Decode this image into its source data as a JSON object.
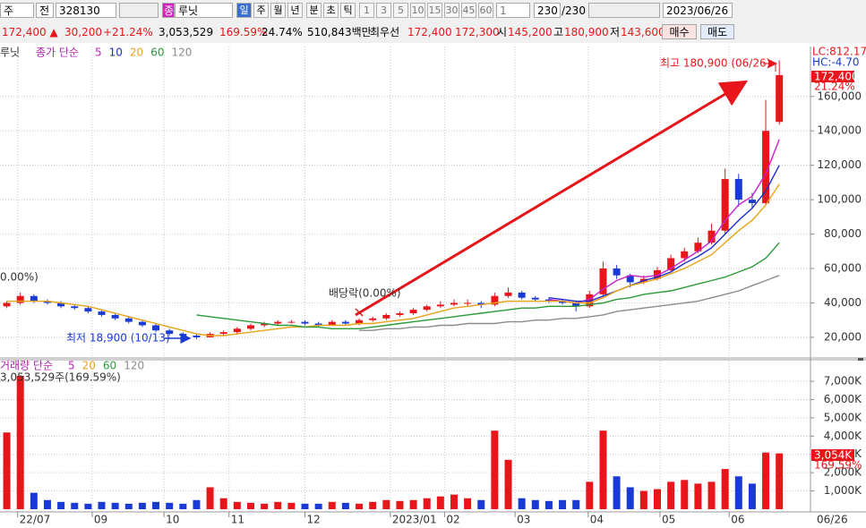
{
  "toolbar": {
    "period": "주",
    "prev": "전",
    "code": "328130",
    "type_badge": "종",
    "name": "루닛",
    "intervals": [
      "일",
      "주",
      "월",
      "년",
      "분",
      "초",
      "틱"
    ],
    "minutes": [
      "1",
      "3",
      "5",
      "10",
      "15",
      "30",
      "45",
      "60"
    ],
    "count_sel": "1",
    "count": "230",
    "count_total": "/230",
    "date": "2023/06/26"
  },
  "quote": {
    "price": "172,400 ▲",
    "change": "30,200",
    "change_pct": "+21.24%",
    "volume": "3,053,529",
    "volume_ratio": "169.59%",
    "turnover": "24.74%",
    "amount": "510,843백만",
    "best_label": "최우선",
    "ask": "172,400",
    "bid": "172,300",
    "open_label": "시",
    "open": "145,200",
    "high_label": "고",
    "high": "180,900",
    "low_label": "저",
    "low": "143,600",
    "buy": "매수",
    "sell": "매도"
  },
  "chart_data": [
    {
      "type": "candlestick",
      "name": "루닛",
      "legend_title": "종가 단순",
      "categories": [
        null,
        null,
        null,
        null,
        null,
        null,
        null,
        null,
        null,
        null,
        null,
        null,
        null,
        null,
        null,
        null,
        null,
        null,
        null,
        null,
        null,
        null,
        null,
        null,
        null,
        null,
        null,
        null,
        null,
        null,
        null,
        null,
        null,
        null,
        null,
        null,
        null,
        null,
        null,
        null,
        null,
        null,
        null,
        null,
        null,
        null,
        null,
        null,
        null,
        null,
        null,
        null,
        null,
        null,
        null,
        null,
        null,
        null
      ],
      "open": [
        38000,
        40000,
        44000,
        41000,
        40000,
        38000,
        37000,
        35000,
        33000,
        31000,
        29000,
        27000,
        24000,
        22000,
        21000,
        20000,
        22000,
        23000,
        25000,
        27000,
        28000,
        29000,
        29000,
        28000,
        27000,
        29000,
        28000,
        30000,
        31000,
        33000,
        34000,
        36000,
        38000,
        39000,
        40000,
        40000,
        39000,
        44000,
        46000,
        43000,
        42000,
        41000,
        40000,
        38000,
        45000,
        60000,
        56000,
        52000,
        54000,
        59000,
        66000,
        70000,
        75000,
        82000,
        112000,
        100000,
        98000,
        145200
      ],
      "high": [
        41000,
        46000,
        45000,
        42000,
        41000,
        39000,
        38000,
        36000,
        34000,
        32000,
        30000,
        28000,
        25000,
        23000,
        22000,
        23000,
        24000,
        26000,
        28000,
        29000,
        30000,
        30000,
        30000,
        29000,
        30000,
        30000,
        31000,
        32000,
        34000,
        35000,
        37000,
        39000,
        41000,
        42000,
        42000,
        41000,
        46000,
        49000,
        47000,
        44000,
        43000,
        42000,
        41000,
        47000,
        64000,
        62000,
        57000,
        56000,
        61000,
        68000,
        72000,
        78000,
        86000,
        118000,
        115000,
        104000,
        158000,
        180900
      ],
      "low": [
        37000,
        39000,
        40000,
        39000,
        37000,
        36000,
        34000,
        32000,
        30000,
        28000,
        26000,
        23000,
        21000,
        20000,
        18900,
        20000,
        21000,
        22000,
        24000,
        26000,
        27000,
        28000,
        27000,
        26000,
        27000,
        27000,
        27000,
        29000,
        30000,
        32000,
        33000,
        35000,
        37000,
        38000,
        38000,
        37000,
        38000,
        43000,
        42000,
        41000,
        40000,
        39000,
        35000,
        37000,
        44000,
        54000,
        49000,
        51000,
        53000,
        58000,
        64000,
        69000,
        74000,
        80000,
        96000,
        95000,
        97000,
        143600
      ],
      "close": [
        40000,
        44000,
        41000,
        40000,
        38000,
        37000,
        35000,
        33000,
        31000,
        29000,
        27000,
        24000,
        22000,
        21000,
        20000,
        22000,
        23000,
        25000,
        27000,
        28000,
        29000,
        29000,
        28000,
        27000,
        29000,
        28000,
        30000,
        31000,
        33000,
        34000,
        36000,
        38000,
        39000,
        40000,
        40000,
        39000,
        44000,
        46000,
        43000,
        42000,
        41000,
        40000,
        38000,
        45000,
        60000,
        56000,
        52000,
        54000,
        59000,
        66000,
        70000,
        75000,
        82000,
        112000,
        100000,
        98000,
        140000,
        172400
      ],
      "up_color": "#e8161b",
      "down_color": "#1a3ad6",
      "series": [
        {
          "name": "5",
          "color": "#c81fc8",
          "values": [
            null,
            null,
            null,
            null,
            null,
            null,
            null,
            null,
            null,
            null,
            null,
            null,
            null,
            null,
            null,
            null,
            null,
            null,
            null,
            null,
            null,
            null,
            null,
            null,
            null,
            null,
            null,
            null,
            null,
            null,
            null,
            null,
            null,
            null,
            null,
            null,
            null,
            null,
            null,
            null,
            42000,
            41000,
            40000,
            42000,
            48000,
            53000,
            56000,
            55000,
            56000,
            60000,
            65000,
            70000,
            76000,
            88000,
            97000,
            102000,
            115000,
            135000
          ]
        },
        {
          "name": "10",
          "color": "#1b2ec8",
          "values": [
            null,
            null,
            null,
            null,
            null,
            null,
            null,
            null,
            null,
            null,
            null,
            null,
            null,
            null,
            null,
            null,
            null,
            null,
            null,
            null,
            null,
            null,
            null,
            null,
            null,
            null,
            null,
            null,
            null,
            null,
            null,
            null,
            null,
            null,
            null,
            null,
            null,
            null,
            null,
            null,
            43000,
            42000,
            41000,
            41000,
            44000,
            47000,
            50000,
            53000,
            55000,
            58000,
            63000,
            67000,
            72000,
            80000,
            88000,
            95000,
            105000,
            120000
          ]
        },
        {
          "name": "20",
          "color": "#e8a317",
          "values": [
            41000,
            41000,
            41000,
            41000,
            40000,
            39000,
            38000,
            36000,
            34000,
            32000,
            30000,
            28000,
            26000,
            24000,
            22000,
            21000,
            21000,
            22000,
            23000,
            24000,
            25000,
            26000,
            26000,
            27000,
            27000,
            27000,
            28000,
            28000,
            29000,
            30000,
            31000,
            33000,
            35000,
            37000,
            38000,
            39000,
            40000,
            41000,
            41000,
            41000,
            41000,
            41000,
            40000,
            40000,
            43000,
            47000,
            50000,
            52000,
            54000,
            57000,
            60000,
            64000,
            68000,
            75000,
            82000,
            88000,
            97000,
            109000
          ]
        },
        {
          "name": "60",
          "color": "#2b9a3a",
          "values": [
            null,
            null,
            null,
            null,
            null,
            null,
            null,
            null,
            null,
            null,
            null,
            null,
            null,
            null,
            33000,
            32000,
            31000,
            30000,
            29000,
            28000,
            27000,
            27000,
            26000,
            26000,
            25000,
            25000,
            25000,
            26000,
            27000,
            28000,
            29000,
            30000,
            31000,
            32000,
            33000,
            34000,
            35000,
            36000,
            37000,
            37000,
            38000,
            38000,
            38000,
            39000,
            40000,
            42000,
            43000,
            45000,
            46000,
            47000,
            49000,
            51000,
            53000,
            55000,
            58000,
            61000,
            66000,
            75000
          ]
        },
        {
          "name": "120",
          "color": "#8c8c8c",
          "values": [
            null,
            null,
            null,
            null,
            null,
            null,
            null,
            null,
            null,
            null,
            null,
            null,
            null,
            null,
            null,
            null,
            null,
            null,
            null,
            null,
            null,
            null,
            null,
            null,
            null,
            null,
            24000,
            24000,
            25000,
            25000,
            26000,
            26000,
            27000,
            27000,
            28000,
            28000,
            28000,
            29000,
            29000,
            30000,
            30000,
            31000,
            31000,
            32000,
            33000,
            35000,
            36000,
            37000,
            38000,
            39000,
            40000,
            41000,
            43000,
            45000,
            47000,
            50000,
            53000,
            56000
          ]
        }
      ],
      "xlim": [
        -0.5,
        59.3
      ],
      "ylim": [
        8000,
        189000
      ],
      "yticks": [
        {
          "value": 20000,
          "label": "20,000"
        },
        {
          "value": 40000,
          "label": "40,000"
        },
        {
          "value": 60000,
          "label": "60,000"
        },
        {
          "value": 80000,
          "label": "80,000"
        },
        {
          "value": 100000,
          "label": "100,000"
        },
        {
          "value": 120000,
          "label": "120,000"
        },
        {
          "value": 140000,
          "label": "140,000"
        },
        {
          "value": 160000,
          "label": "160,000"
        }
      ],
      "annotations": {
        "high": "최고 180,900 (06/26)",
        "low": "최저 18,900 (10/13)",
        "dividend": "배당락(0.00%)",
        "left": "0.00%)"
      },
      "right_labels": {
        "lc": "LC:812.17",
        "hc": "HC:-4.70",
        "last": "172,400",
        "last_pct": "21.24%"
      }
    },
    {
      "type": "bar",
      "legend_title": "거래량 단순",
      "legend": [
        {
          "name": "5",
          "color": "#c81fc8"
        },
        {
          "name": "20",
          "color": "#e8a317"
        },
        {
          "name": "60",
          "color": "#2b9a3a"
        },
        {
          "name": "120",
          "color": "#8c8c8c"
        }
      ],
      "summary": "3,053,529주(169.59%)",
      "values": [
        4200000,
        7300000,
        900000,
        500000,
        400000,
        350000,
        300000,
        400000,
        350000,
        300000,
        350000,
        400000,
        350000,
        300000,
        500000,
        1200000,
        600000,
        400000,
        350000,
        300000,
        400000,
        350000,
        300000,
        300000,
        400000,
        350000,
        300000,
        400000,
        500000,
        450000,
        500000,
        600000,
        700000,
        800000,
        600000,
        500000,
        4300000,
        2700000,
        600000,
        500000,
        450000,
        500000,
        500000,
        1500000,
        4300000,
        1800000,
        1200000,
        1000000,
        1100000,
        1500000,
        1600000,
        1400000,
        1500000,
        2200000,
        1800000,
        1400000,
        3100000,
        3053529
      ],
      "xlim": [
        -0.5,
        59.3
      ],
      "ylim": [
        0,
        8080000
      ],
      "xticks": [
        {
          "value": 0.8,
          "label": "22/07"
        },
        {
          "value": 6.3,
          "label": "09"
        },
        {
          "value": 11.6,
          "label": "10"
        },
        {
          "value": 16.4,
          "label": "11"
        },
        {
          "value": 22.0,
          "label": "12"
        },
        {
          "value": 28.3,
          "label": "2023/01"
        },
        {
          "value": 32.3,
          "label": "02"
        },
        {
          "value": 37.5,
          "label": "03"
        },
        {
          "value": 42.9,
          "label": "04"
        },
        {
          "value": 48.2,
          "label": "05"
        },
        {
          "value": 53.3,
          "label": "06"
        }
      ],
      "yticks": [
        {
          "value": 1000000,
          "label": "1,000K"
        },
        {
          "value": 2000000,
          "label": "2,000K"
        },
        {
          "value": 3000000,
          "label": "3,000K"
        },
        {
          "value": 4000000,
          "label": "4,000K"
        },
        {
          "value": 5000000,
          "label": "5,000K"
        },
        {
          "value": 6000000,
          "label": "6,000K"
        },
        {
          "value": 7000000,
          "label": "7,000K"
        }
      ],
      "right_labels": {
        "last": "3,054K",
        "last_pct": "169.59%",
        "last_date": "06/26"
      }
    }
  ]
}
